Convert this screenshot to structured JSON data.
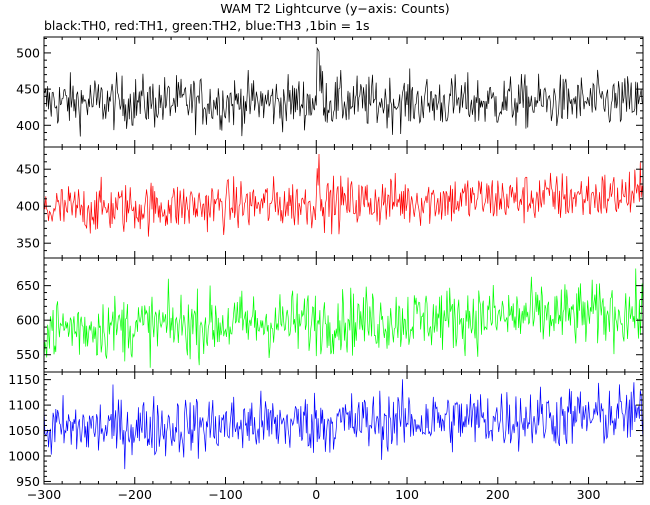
{
  "title": "WAM T2 Lightcurve (y−axis: Counts)",
  "subtitle": "black:TH0, red:TH1, green:TH2, blue:TH3 ,1bin = 1s",
  "chart_data": {
    "type": "line",
    "x_range": [
      -300,
      360
    ],
    "x_ticks": [
      -300,
      -200,
      -100,
      0,
      100,
      200,
      300
    ],
    "x_tick_labels": [
      "−300",
      "−200",
      "−100",
      "0",
      "100",
      "200",
      "300"
    ],
    "bin_seconds": 1,
    "series": [
      {
        "name": "TH0",
        "color": "#000000",
        "ylim": [
          370,
          522
        ],
        "yticks": [
          400,
          450,
          500
        ],
        "mean": 432,
        "noise": 18,
        "burst": {
          "start": 0,
          "peak_time": 2,
          "peak": 510,
          "end": 12
        }
      },
      {
        "name": "TH1",
        "color": "#ff0000",
        "ylim": [
          330,
          480
        ],
        "yticks": [
          350,
          400,
          450
        ],
        "mean": 402,
        "noise": 17,
        "trend": [
          395,
          415
        ],
        "burst": {
          "start": 0,
          "peak_time": 2,
          "peak": 455,
          "end": 8
        }
      },
      {
        "name": "TH2",
        "color": "#00ff00",
        "ylim": [
          525,
          690
        ],
        "yticks": [
          550,
          600,
          650
        ],
        "mean": 592,
        "noise": 23,
        "trend": [
          588,
          610
        ]
      },
      {
        "name": "TH3",
        "color": "#0000ff",
        "ylim": [
          945,
          1165
        ],
        "yticks": [
          950,
          1000,
          1050,
          1100,
          1150
        ],
        "mean": 1058,
        "noise": 30,
        "trend": [
          1052,
          1080
        ]
      }
    ]
  }
}
